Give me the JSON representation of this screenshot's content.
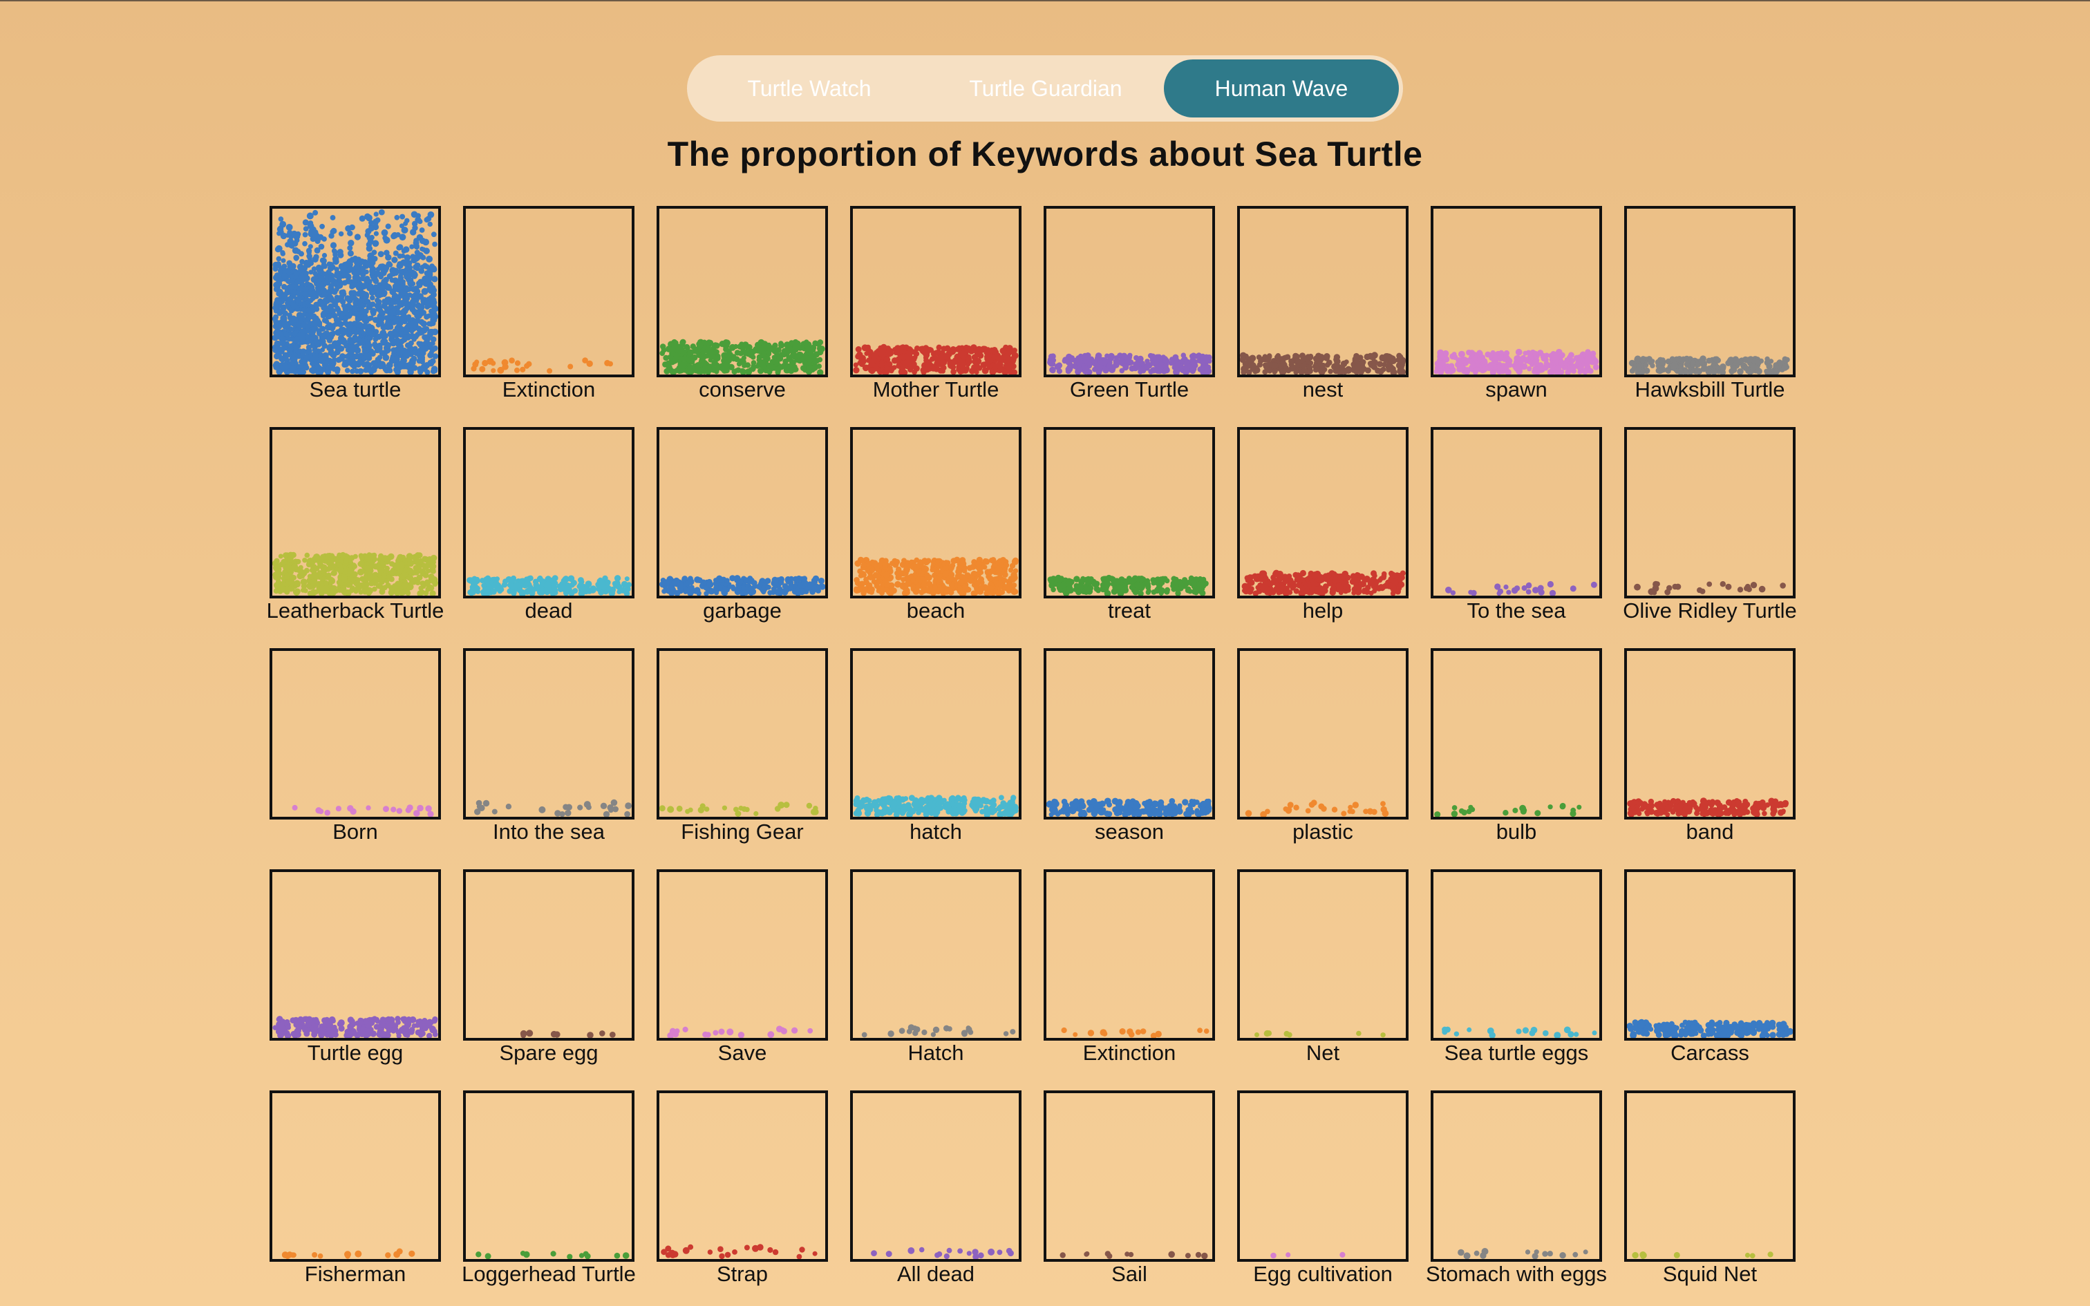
{
  "tabs": [
    {
      "label": "Turtle Watch",
      "active": false
    },
    {
      "label": "Turtle Guardian",
      "active": false
    },
    {
      "label": "Human Wave",
      "active": true
    }
  ],
  "chart_data": {
    "type": "dot-proportion grid",
    "title": "The proportion of Keywords about Sea Turtle",
    "items": [
      {
        "label": "Sea turtle",
        "color": "#3a7bc4",
        "fill": 0.68,
        "extra": 0.3
      },
      {
        "label": "Extinction",
        "color": "#f0892f",
        "fill": 0.09,
        "extra": 0
      },
      {
        "label": "conserve",
        "color": "#4a9e3a",
        "fill": 0.2,
        "extra": 0
      },
      {
        "label": "Mother Turtle",
        "color": "#cc3a30",
        "fill": 0.17,
        "extra": 0
      },
      {
        "label": "Green Turtle",
        "color": "#8d62c0",
        "fill": 0.12,
        "extra": 0
      },
      {
        "label": "nest",
        "color": "#86574a",
        "fill": 0.12,
        "extra": 0
      },
      {
        "label": "spawn",
        "color": "#d67fcf",
        "fill": 0.14,
        "extra": 0
      },
      {
        "label": "Hawksbill Turtle",
        "color": "#858585",
        "fill": 0.1,
        "extra": 0
      },
      {
        "label": "Leatherback Turtle",
        "color": "#b7bf3f",
        "fill": 0.25,
        "extra": 0
      },
      {
        "label": "dead",
        "color": "#4ab8cf",
        "fill": 0.11,
        "extra": 0
      },
      {
        "label": "garbage",
        "color": "#3a7bc4",
        "fill": 0.11,
        "extra": 0
      },
      {
        "label": "beach",
        "color": "#f0892f",
        "fill": 0.22,
        "extra": 0
      },
      {
        "label": "treat",
        "color": "#4a9e3a",
        "fill": 0.11,
        "extra": 0
      },
      {
        "label": "help",
        "color": "#cc3a30",
        "fill": 0.14,
        "extra": 0
      },
      {
        "label": "To the sea",
        "color": "#8d62c0",
        "fill": 0.08,
        "extra": 0
      },
      {
        "label": "Olive Ridley Turtle",
        "color": "#86574a",
        "fill": 0.08,
        "extra": 0
      },
      {
        "label": "Born",
        "color": "#d67fcf",
        "fill": 0.06,
        "extra": 0
      },
      {
        "label": "Into the sea",
        "color": "#858585",
        "fill": 0.09,
        "extra": 0
      },
      {
        "label": "Fishing Gear",
        "color": "#b7bf3f",
        "fill": 0.08,
        "extra": 0
      },
      {
        "label": "hatch",
        "color": "#4ab8cf",
        "fill": 0.12,
        "extra": 0
      },
      {
        "label": "season",
        "color": "#3a7bc4",
        "fill": 0.1,
        "extra": 0
      },
      {
        "label": "plastic",
        "color": "#f0892f",
        "fill": 0.09,
        "extra": 0
      },
      {
        "label": "bulb",
        "color": "#4a9e3a",
        "fill": 0.07,
        "extra": 0
      },
      {
        "label": "band",
        "color": "#cc3a30",
        "fill": 0.1,
        "extra": 0
      },
      {
        "label": "Turtle egg",
        "color": "#8d62c0",
        "fill": 0.12,
        "extra": 0
      },
      {
        "label": "Spare egg",
        "color": "#86574a",
        "fill": 0.03,
        "extra": 0
      },
      {
        "label": "Save",
        "color": "#d67fcf",
        "fill": 0.06,
        "extra": 0
      },
      {
        "label": "Hatch",
        "color": "#858585",
        "fill": 0.07,
        "extra": 0
      },
      {
        "label": "Extinction",
        "color": "#f0892f",
        "fill": 0.05,
        "extra": 0
      },
      {
        "label": "Net",
        "color": "#b7bf3f",
        "fill": 0.03,
        "extra": 0
      },
      {
        "label": "Sea turtle eggs",
        "color": "#4ab8cf",
        "fill": 0.06,
        "extra": 0
      },
      {
        "label": "Carcass",
        "color": "#3a7bc4",
        "fill": 0.1,
        "extra": 0
      },
      {
        "label": "Fisherman",
        "color": "#f0892f",
        "fill": 0.05,
        "extra": 0
      },
      {
        "label": "Loggerhead Turtle",
        "color": "#4a9e3a",
        "fill": 0.04,
        "extra": 0
      },
      {
        "label": "Strap",
        "color": "#cc3a30",
        "fill": 0.08,
        "extra": 0
      },
      {
        "label": "All dead",
        "color": "#8d62c0",
        "fill": 0.06,
        "extra": 0
      },
      {
        "label": "Sail",
        "color": "#86574a",
        "fill": 0.04,
        "extra": 0
      },
      {
        "label": "Egg cultivation",
        "color": "#d67fcf",
        "fill": 0.01,
        "extra": 0
      },
      {
        "label": "Stomach with eggs",
        "color": "#858585",
        "fill": 0.05,
        "extra": 0
      },
      {
        "label": "Squid Net",
        "color": "#b7bf3f",
        "fill": 0.03,
        "extra": 0
      }
    ]
  }
}
